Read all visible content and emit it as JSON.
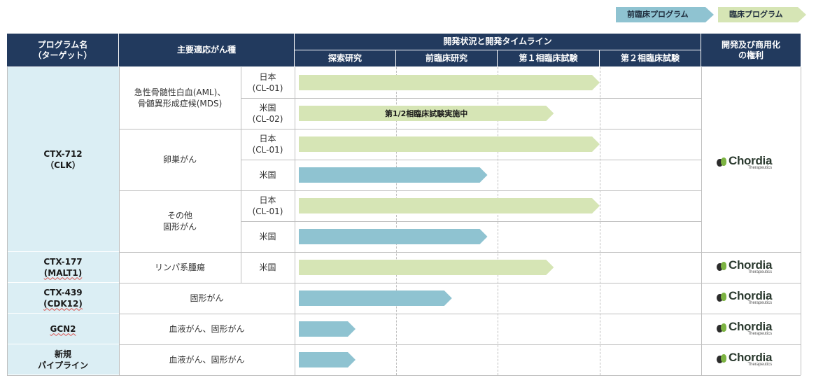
{
  "legend": {
    "preclinical": "前臨床プログラム",
    "clinical": "臨床プログラム"
  },
  "colors": {
    "header": "#223a5e",
    "program_cell": "#dbeef4",
    "clinical_bar": "#d6e5b5",
    "preclinical_bar": "#8fc3d1"
  },
  "header": {
    "program": [
      "プログラム名",
      "（ターゲット）"
    ],
    "indication": "主要適応がん種",
    "status": "開発状況と開発タイムライン",
    "phases": [
      "探索研究",
      "前臨床研究",
      "第１相臨床試験",
      "第２相臨床試験"
    ],
    "rights": [
      "開発及び商用化",
      "の権利"
    ]
  },
  "programs": [
    {
      "name": [
        "CTX-712",
        "（CLK）"
      ]
    },
    {
      "name": [
        "CTX-177",
        "(MALT1)"
      ]
    },
    {
      "name": [
        "CTX-439",
        "(CDK12)"
      ]
    },
    {
      "name": [
        "GCN2"
      ]
    },
    {
      "name": [
        "新規",
        "パイプライン"
      ]
    }
  ],
  "indications": [
    [
      "急性骨髄性白血(AML)、",
      "骨髄異形成症候(MDS)"
    ],
    [
      "卵巣がん"
    ],
    [
      "その他",
      "固形がん"
    ],
    [
      "リンパ系腫瘍"
    ],
    [
      "固形がん"
    ],
    [
      "血液がん、固形がん"
    ],
    [
      "血液がん、固形がん"
    ]
  ],
  "regions": [
    [
      "日本",
      "(CL-01)"
    ],
    [
      "米国",
      "(CL-02)"
    ],
    [
      "日本",
      "(CL-01)"
    ],
    [
      "米国"
    ],
    [
      "日本",
      "(CL-01)"
    ],
    [
      "米国"
    ],
    [
      "米国"
    ]
  ],
  "bars": [
    {
      "type": "clinical",
      "phase_progress": 3.0,
      "label": ""
    },
    {
      "type": "clinical",
      "phase_progress": 2.55,
      "label": "第1/2相臨床試験実施中"
    },
    {
      "type": "clinical",
      "phase_progress": 3.0,
      "label": ""
    },
    {
      "type": "preclinical",
      "phase_progress": 1.9,
      "label": ""
    },
    {
      "type": "clinical",
      "phase_progress": 3.0,
      "label": ""
    },
    {
      "type": "preclinical",
      "phase_progress": 1.9,
      "label": ""
    },
    {
      "type": "clinical",
      "phase_progress": 2.55,
      "label": ""
    },
    {
      "type": "preclinical",
      "phase_progress": 1.55,
      "label": ""
    },
    {
      "type": "preclinical",
      "phase_progress": 0.6,
      "label": ""
    },
    {
      "type": "preclinical",
      "phase_progress": 0.6,
      "label": ""
    }
  ],
  "rights_logo": {
    "name": "Chordia",
    "sub": "Therapeutics",
    "icon": "chordia-leaf-icon"
  }
}
